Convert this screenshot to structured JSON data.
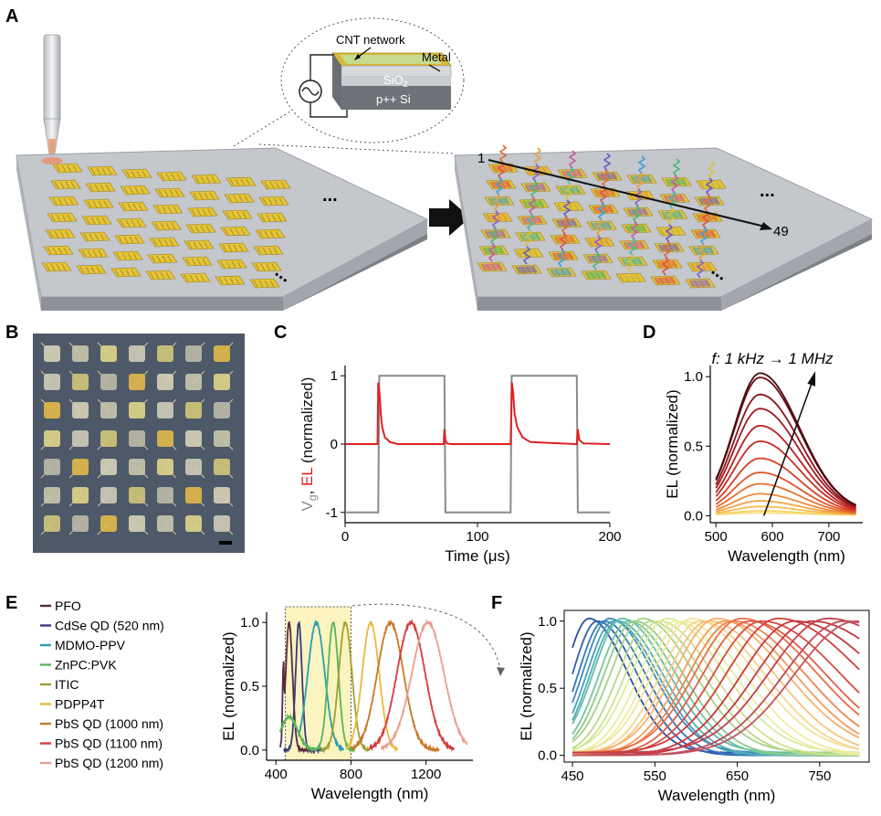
{
  "panels": {
    "A": {
      "label": "A",
      "callout_cnt": "CNT network",
      "callout_metal": "Metal",
      "layer_sio2": "SiO",
      "layer_sio2_sub": "2",
      "layer_si": "p++ Si",
      "arrow_start": "1",
      "arrow_end": "49",
      "ellipsis": "..."
    },
    "B": {
      "label": "B"
    },
    "C": {
      "label": "C"
    },
    "D": {
      "label": "D"
    },
    "E": {
      "label": "E"
    },
    "F": {
      "label": "F"
    }
  },
  "colors": {
    "substrate_top": "#b9bcc1",
    "pad_gold": "#e3c43a",
    "ev_gray": "#8a8a8a",
    "el_red": "#e02020",
    "highlight": "#fbf3c0"
  },
  "chart_data": [
    {
      "id": "C",
      "type": "line",
      "xlabel": "Time (μs)",
      "ylabel_parts": [
        "V",
        "g",
        ", ",
        "EL",
        " (normalized)"
      ],
      "xlim": [
        0,
        200
      ],
      "ylim": [
        -1.15,
        1.15
      ],
      "xticks": [
        0,
        100,
        200
      ],
      "yticks": [
        -1,
        0,
        1
      ],
      "series": [
        {
          "key": "vg",
          "color": "#8a8a8a",
          "x": [
            0,
            25,
            25.8,
            75,
            75.8,
            125,
            125.8,
            175,
            175.8,
            200
          ],
          "y": [
            -1,
            -1,
            1,
            1,
            -1,
            -1,
            1,
            1,
            -1,
            -1
          ]
        },
        {
          "key": "el",
          "color": "#e02020",
          "x": [
            0,
            24.5,
            25,
            26,
            27,
            28,
            30,
            34,
            40,
            74.5,
            75,
            75.7,
            77,
            80,
            124.5,
            125,
            126,
            127,
            128,
            130,
            134,
            140,
            174.5,
            175,
            175.7,
            177,
            180,
            200
          ],
          "y": [
            0,
            0,
            0.9,
            0.75,
            0.45,
            0.25,
            0.1,
            0.03,
            0,
            0,
            0.22,
            0.06,
            0.01,
            0,
            0,
            0,
            0.9,
            0.75,
            0.45,
            0.25,
            0.1,
            0.03,
            0,
            0,
            0.22,
            0.06,
            0.01,
            0
          ]
        }
      ]
    },
    {
      "id": "D",
      "type": "line",
      "annotation": "f: 1 kHz → 1 MHz",
      "xlabel": "Wavelength (nm)",
      "ylabel": "EL (normalized)",
      "xlim": [
        490,
        760
      ],
      "ylim": [
        -0.05,
        1.08
      ],
      "xticks": [
        500,
        600,
        700
      ],
      "yticks": [
        0.0,
        0.5,
        1.0
      ],
      "ytick_labels": [
        "0.0",
        "0.5",
        "1.0"
      ],
      "peak_nm": 578,
      "amplitudes": [
        1.0,
        0.97,
        0.85,
        0.75,
        0.63,
        0.52,
        0.4,
        0.3,
        0.22,
        0.15,
        0.1,
        0.06,
        0.03,
        0.015
      ],
      "colors": [
        "#4a0a10",
        "#6a0f16",
        "#8a141a",
        "#a11a1e",
        "#b91f22",
        "#cc2a22",
        "#d83d25",
        "#e2552a",
        "#e86f30",
        "#ee8a38",
        "#f2a445",
        "#f5bd55",
        "#f7d26a",
        "#f8e080"
      ]
    },
    {
      "id": "E",
      "type": "line",
      "xlabel": "Wavelength (nm)",
      "ylabel": "EL (normalized)",
      "xlim": [
        350,
        1450
      ],
      "ylim": [
        -0.08,
        1.08
      ],
      "xticks": [
        400,
        800,
        1200
      ],
      "yticks": [
        0.0,
        0.5,
        1.0
      ],
      "ytick_labels": [
        "0.0",
        "0.5",
        "1.0"
      ],
      "highlight_range": [
        450,
        800
      ],
      "legend": [
        {
          "name": "PFO",
          "color": "#5a2a3a"
        },
        {
          "name": "CdSe QD (520 nm)",
          "color": "#3a3a7a"
        },
        {
          "name": "MDMO-PPV",
          "color": "#2a9fb0"
        },
        {
          "name": "ZnPC:PVK",
          "color": "#5ab45a"
        },
        {
          "name": "ITIC",
          "color": "#a0a030"
        },
        {
          "name": "PDPP4T",
          "color": "#e8b838"
        },
        {
          "name": "PbS QD (1000 nm)",
          "color": "#c8782a"
        },
        {
          "name": "PbS QD (1100 nm)",
          "color": "#d83a3a"
        },
        {
          "name": "PbS QD (1200 nm)",
          "color": "#e8a090"
        }
      ],
      "series": [
        {
          "name": "PFO",
          "peak": 470,
          "width": 18,
          "shoulder": 440,
          "range": [
            420,
            600
          ]
        },
        {
          "name": "CdSe QD (520 nm)",
          "peak": 522,
          "width": 17,
          "range": [
            440,
            650
          ]
        },
        {
          "name": "MDMO-PPV",
          "peak": 615,
          "width": 45,
          "range": [
            520,
            760
          ]
        },
        {
          "name": "ZnPC:PVK",
          "peak": 705,
          "width": 28,
          "secondary": 470,
          "range": [
            420,
            820
          ]
        },
        {
          "name": "ITIC",
          "peak": 770,
          "width": 35,
          "range": [
            640,
            900
          ]
        },
        {
          "name": "PDPP4T",
          "peak": 905,
          "width": 45,
          "range": [
            780,
            1050
          ]
        },
        {
          "name": "PbS QD (1000 nm)",
          "peak": 1010,
          "width": 70,
          "range": [
            800,
            1270
          ]
        },
        {
          "name": "PbS QD (1100 nm)",
          "peak": 1120,
          "width": 75,
          "range": [
            900,
            1350
          ]
        },
        {
          "name": "PbS QD (1200 nm)",
          "peak": 1210,
          "width": 85,
          "range": [
            960,
            1420
          ]
        }
      ]
    },
    {
      "id": "F",
      "type": "line",
      "xlabel": "Wavelength (nm)",
      "ylabel": "EL (normalized)",
      "xlim": [
        440,
        810
      ],
      "ylim": [
        -0.05,
        1.08
      ],
      "xticks": [
        450,
        550,
        650,
        750
      ],
      "yticks": [
        0.0,
        0.5,
        1.0
      ],
      "ytick_labels": [
        "0.0",
        "0.5",
        "1.0"
      ],
      "peaks": [
        470,
        480,
        488,
        495,
        500,
        505,
        510,
        518,
        525,
        535,
        545,
        555,
        565,
        575,
        585,
        595,
        605,
        615,
        625,
        635,
        645,
        655,
        665,
        680,
        700,
        720,
        740,
        760,
        780,
        795
      ],
      "colors": [
        "#2a4fa0",
        "#2f63b0",
        "#3577b8",
        "#3b8cbc",
        "#45a0bc",
        "#52b0b5",
        "#62bca8",
        "#75c49a",
        "#8ccb8c",
        "#a3d384",
        "#b8da85",
        "#cce28c",
        "#ddea98",
        "#e8eea0",
        "#f0eba0",
        "#f5e29a",
        "#f8d48e",
        "#f8c47e",
        "#f6b06e",
        "#f39c5f",
        "#ee8652",
        "#e8704a",
        "#e05d44",
        "#d84c40",
        "#d03f3c",
        "#c8373b",
        "#c23a42",
        "#c0404c",
        "#bf4a58",
        "#c05562"
      ]
    }
  ]
}
